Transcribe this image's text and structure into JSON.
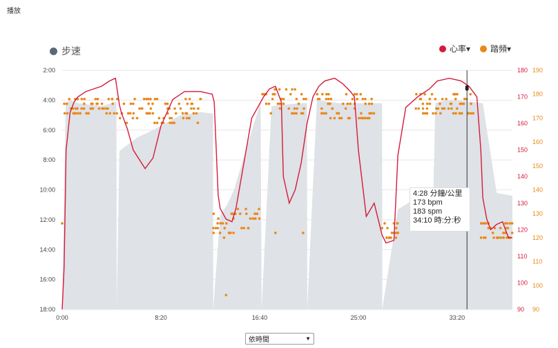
{
  "window": {
    "title": "播放"
  },
  "legend": {
    "pace": {
      "label": "步速",
      "color": "#5a6778"
    },
    "heart_rate": {
      "label": "心率▾",
      "color": "#d6193a"
    },
    "cadence": {
      "label": "踏頻▾",
      "color": "#e9881a"
    }
  },
  "tooltip": {
    "pace": "4:28 分鐘/公里",
    "heart_rate": "173 bpm",
    "cadence": "183 spm",
    "time": "34:10 時:分:秒"
  },
  "select": {
    "value": "依時間"
  },
  "chart_data": {
    "type": "line",
    "x_ticks": [
      "0:00",
      "8:20",
      "16:40",
      "25:00",
      "33:20"
    ],
    "x_range_seconds": [
      0,
      2280
    ],
    "y_left": {
      "ticks": [
        "2:00",
        "4:00",
        "6:00",
        "8:00",
        "10:00",
        "12:00",
        "14:00",
        "16:00",
        "18:00"
      ],
      "range_min_per_km": [
        2,
        18
      ],
      "inverted": true
    },
    "y_right_hr": {
      "ticks": [
        90,
        100,
        110,
        120,
        130,
        140,
        150,
        160,
        170,
        180
      ],
      "range": [
        90,
        180
      ]
    },
    "y_right_cadence": {
      "ticks": [
        90,
        100,
        110,
        120,
        130,
        140,
        150,
        160,
        170,
        180,
        190
      ],
      "range": [
        90,
        190
      ]
    },
    "series": [
      {
        "name": "步速",
        "type": "area",
        "color": "#dfe2e6",
        "x": [
          0,
          18,
          40,
          80,
          200,
          275,
          276,
          290,
          380,
          460,
          530,
          600,
          700,
          764,
          765,
          800,
          835,
          870,
          1005,
          1010,
          1060,
          1200,
          1240,
          1241,
          1290,
          1400,
          1580,
          1620,
          1621,
          1700,
          1800,
          1880,
          1890,
          1940,
          2000,
          2130,
          2200,
          2280
        ],
        "y": [
          18,
          4.2,
          4.0,
          4.2,
          4.4,
          4.1,
          18,
          7.4,
          6.5,
          6.0,
          5.5,
          5.0,
          4.8,
          4.9,
          18,
          11.7,
          11.0,
          10.0,
          4.1,
          18,
          4.4,
          4.2,
          4.2,
          18,
          4.0,
          4.2,
          4.2,
          4.2,
          18,
          11.3,
          10.5,
          10.0,
          4.2,
          4.0,
          4.0,
          4.2,
          10.2,
          10.4
        ]
      },
      {
        "name": "心率",
        "type": "line",
        "color": "#d6193a",
        "x": [
          0,
          10,
          20,
          40,
          60,
          80,
          100,
          120,
          160,
          200,
          240,
          270,
          290,
          300,
          330,
          360,
          420,
          460,
          500,
          560,
          620,
          700,
          760,
          770,
          790,
          800,
          830,
          860,
          880,
          960,
          1020,
          1050,
          1080,
          1110,
          1120,
          1150,
          1180,
          1210,
          1240,
          1270,
          1300,
          1330,
          1380,
          1420,
          1460,
          1480,
          1500,
          1540,
          1580,
          1620,
          1640,
          1680,
          1700,
          1740,
          1800,
          1860,
          1900,
          1960,
          2020,
          2060,
          2100,
          2120,
          2130,
          2150,
          2170,
          2200,
          2230,
          2260,
          2280
        ],
        "y": [
          90,
          106,
          150,
          164,
          168,
          170,
          171,
          172,
          173,
          174,
          176,
          177,
          167,
          164,
          158,
          150,
          143,
          147,
          159,
          169,
          172,
          172,
          171,
          168,
          133,
          128,
          124,
          123,
          128,
          162,
          170,
          173,
          174,
          168,
          140,
          130,
          135,
          145,
          160,
          170,
          174,
          176,
          177,
          175,
          172,
          170,
          150,
          125,
          130,
          118,
          115,
          116,
          148,
          166,
          170,
          173,
          176,
          177,
          176,
          174,
          170,
          150,
          132,
          124,
          120,
          122,
          123,
          117,
          117
        ]
      },
      {
        "name": "踏頻",
        "type": "scatter",
        "color": "#e9881a",
        "runs": [
          {
            "x_from": 10,
            "x_to": 275,
            "y_values": [
              172,
              174,
              176,
              178
            ]
          },
          {
            "x_from": 290,
            "x_to": 700,
            "y_values": [
              168,
              170,
              172,
              174,
              176,
              178
            ]
          },
          {
            "x_from": 765,
            "x_to": 870,
            "y_values": [
              120,
              122,
              124,
              126,
              128,
              130
            ]
          },
          {
            "x_from": 875,
            "x_to": 1005,
            "y_values": [
              124,
              128,
              130,
              132
            ]
          },
          {
            "x_from": 1010,
            "x_to": 1240,
            "y_values": [
              172,
              174,
              176,
              178,
              180,
              182
            ]
          },
          {
            "x_from": 1290,
            "x_to": 1580,
            "y_values": [
              170,
              172,
              174,
              176,
              178,
              180
            ]
          },
          {
            "x_from": 1620,
            "x_to": 1700,
            "y_values": [
              120,
              122,
              124,
              126
            ]
          },
          {
            "x_from": 1790,
            "x_to": 2080,
            "y_values": [
              172,
              174,
              176,
              178,
              180
            ]
          },
          {
            "x_from": 2120,
            "x_to": 2280,
            "y_values": [
              120,
              122,
              124,
              126
            ]
          }
        ],
        "outliers": [
          {
            "x": 0,
            "y": 126
          },
          {
            "x": 830,
            "y": 96
          },
          {
            "x": 1220,
            "y": 122
          },
          {
            "x": 1080,
            "y": 122
          }
        ]
      }
    ],
    "cursor": {
      "x_seconds": 2050,
      "hr": 173,
      "cadence": 183,
      "pace": "4:28"
    }
  }
}
